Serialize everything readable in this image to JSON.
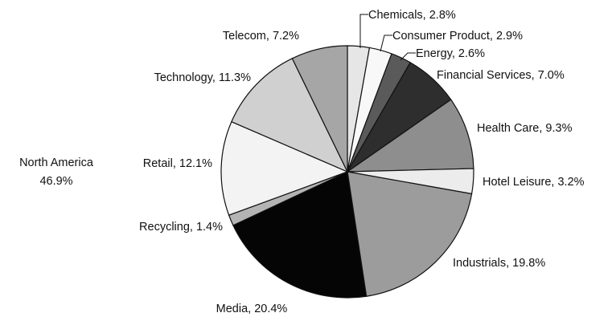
{
  "chart_data": {
    "type": "pie",
    "title": "",
    "center_label": {
      "line1": "North America",
      "line2": "46.9%"
    },
    "slices": [
      {
        "name": "Chemicals",
        "value": 2.8,
        "label": "Chemicals, 2.8%",
        "color": "#e6e6e6"
      },
      {
        "name": "Consumer Product",
        "value": 2.9,
        "label": "Consumer Product, 2.9%",
        "color": "#f8f8f8"
      },
      {
        "name": "Energy",
        "value": 2.6,
        "label": "Energy, 2.6%",
        "color": "#5a5a5a"
      },
      {
        "name": "Financial Services",
        "value": 7.0,
        "label": "Financial Services, 7.0%",
        "color": "#2e2e2e"
      },
      {
        "name": "Health Care",
        "value": 9.3,
        "label": "Health Care, 9.3%",
        "color": "#8e8e8e"
      },
      {
        "name": "Hotel Leisure",
        "value": 3.2,
        "label": "Hotel Leisure, 3.2%",
        "color": "#ececec"
      },
      {
        "name": "Industrials",
        "value": 19.8,
        "label": "Industrials, 19.8%",
        "color": "#9c9c9c"
      },
      {
        "name": "Media",
        "value": 20.4,
        "label": "Media, 20.4%",
        "color": "#050505"
      },
      {
        "name": "Recycling",
        "value": 1.4,
        "label": "Recycling, 1.4%",
        "color": "#b4b4b4"
      },
      {
        "name": "Retail",
        "value": 12.1,
        "label": "Retail, 12.1%",
        "color": "#f3f3f3"
      },
      {
        "name": "Technology",
        "value": 11.3,
        "label": "Technology, 11.3%",
        "color": "#d0d0d0"
      },
      {
        "name": "Telecom",
        "value": 7.2,
        "label": "Telecom, 7.2%",
        "color": "#a6a6a6"
      }
    ]
  }
}
